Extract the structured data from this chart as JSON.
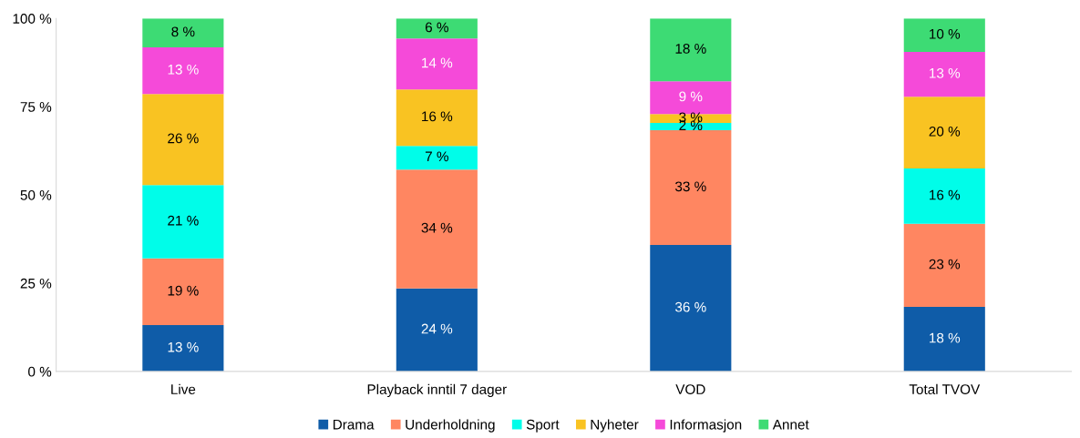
{
  "chart_data": {
    "type": "bar",
    "stacked": true,
    "categories": [
      "Live",
      "Playback inntil 7 dager",
      "VOD",
      "Total TVOV"
    ],
    "series": [
      {
        "name": "Drama",
        "color": "#0f5ca8",
        "values": [
          13.1,
          23.5,
          35.8,
          18.3
        ],
        "value_labels": [
          "13 %",
          "24 %",
          "36 %",
          "18 %"
        ]
      },
      {
        "name": "Underholdning",
        "color": "#ff8661",
        "values": [
          18.9,
          33.7,
          32.5,
          23.5
        ],
        "value_labels": [
          "19 %",
          "34 %",
          "33 %",
          "23 %"
        ]
      },
      {
        "name": "Sport",
        "color": "#00fde9",
        "values": [
          20.8,
          6.7,
          2.1,
          15.7
        ],
        "value_labels": [
          "21 %",
          "7 %",
          "2 %",
          "16 %"
        ]
      },
      {
        "name": "Nyheter",
        "color": "#f9c322",
        "values": [
          25.8,
          16.0,
          2.5,
          20.3
        ],
        "value_labels": [
          "26 %",
          "16 %",
          "3 %",
          "20 %"
        ]
      },
      {
        "name": "Informasjon",
        "color": "#f54ad9",
        "values": [
          13.2,
          14.4,
          9.3,
          12.7
        ],
        "value_labels": [
          "13 %",
          "14 %",
          "9 %",
          "13 %"
        ]
      },
      {
        "name": "Annet",
        "color": "#3ddb74",
        "values": [
          8.2,
          5.7,
          17.8,
          9.5
        ],
        "value_labels": [
          "8 %",
          "6 %",
          "18 %",
          "10 %"
        ]
      }
    ],
    "ylim": [
      0,
      100
    ],
    "yticks": [
      {
        "value": 0,
        "label": "0 %"
      },
      {
        "value": 25,
        "label": "25 %"
      },
      {
        "value": 50,
        "label": "50 %"
      },
      {
        "value": 75,
        "label": "75 %"
      },
      {
        "value": 100,
        "label": "100 %"
      }
    ],
    "grid": false,
    "legend": "bottom"
  }
}
